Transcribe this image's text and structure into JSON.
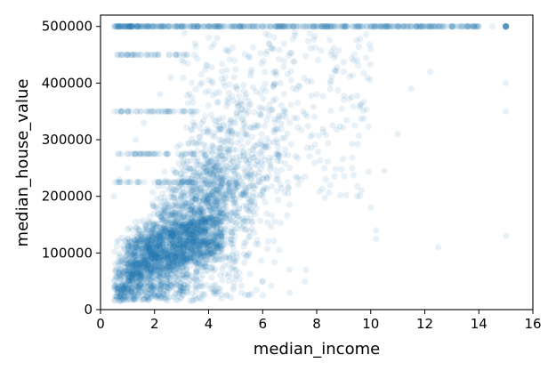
{
  "chart_data": {
    "type": "scatter",
    "xlabel": "median_income",
    "ylabel": "median_house_value",
    "xlim": [
      0,
      16
    ],
    "ylim": [
      0,
      520000
    ],
    "xticks": [
      0,
      2,
      4,
      6,
      8,
      10,
      12,
      14,
      16
    ],
    "yticks": [
      0,
      100000,
      200000,
      300000,
      400000,
      500000
    ],
    "xtick_labels": [
      "0",
      "2",
      "4",
      "6",
      "8",
      "10",
      "12",
      "14",
      "16"
    ],
    "ytick_labels": [
      "0",
      "100000",
      "200000",
      "300000",
      "400000",
      "500000"
    ],
    "grid": false,
    "marker_color": "#1f77b4",
    "marker_alpha": 0.1,
    "series": [
      {
        "values": [
          [
            0.5,
            500000
          ],
          [
            0.8,
            500000
          ],
          [
            1.2,
            500000
          ],
          [
            1.5,
            500000
          ],
          [
            2.0,
            500000
          ],
          [
            2.5,
            500000
          ],
          [
            3.0,
            500000
          ],
          [
            3.5,
            500000
          ],
          [
            4.0,
            500000
          ],
          [
            4.5,
            500000
          ],
          [
            5.0,
            500000
          ],
          [
            5.5,
            500000
          ],
          [
            6.0,
            500000
          ],
          [
            6.5,
            500000
          ],
          [
            7.0,
            500000
          ],
          [
            7.5,
            500000
          ],
          [
            8.0,
            500000
          ],
          [
            8.5,
            500000
          ],
          [
            9.0,
            500000
          ],
          [
            9.5,
            500000
          ],
          [
            10.0,
            500000
          ],
          [
            10.5,
            500000
          ],
          [
            11.0,
            500000
          ],
          [
            11.5,
            500000
          ],
          [
            12.0,
            500000
          ],
          [
            12.5,
            500000
          ],
          [
            13.0,
            500000
          ],
          [
            13.5,
            500000
          ],
          [
            14.0,
            500000
          ],
          [
            14.5,
            500000
          ],
          [
            15.0,
            500000
          ],
          [
            0.5,
            350000
          ],
          [
            1.0,
            350000
          ],
          [
            1.5,
            350000
          ],
          [
            2.0,
            350000
          ],
          [
            1.0,
            450000
          ],
          [
            1.5,
            450000
          ],
          [
            2.0,
            450000
          ],
          [
            1.0,
            275000
          ],
          [
            1.5,
            275000
          ],
          [
            2.0,
            275000
          ],
          [
            0.6,
            120000
          ],
          [
            0.8,
            90000
          ],
          [
            1.0,
            70000
          ],
          [
            1.2,
            60000
          ],
          [
            1.5,
            80000
          ],
          [
            1.8,
            65000
          ],
          [
            2.0,
            90000
          ],
          [
            2.2,
            110000
          ],
          [
            2.5,
            95000
          ],
          [
            2.8,
            130000
          ],
          [
            3.0,
            150000
          ],
          [
            3.2,
            120000
          ],
          [
            3.5,
            170000
          ],
          [
            3.8,
            160000
          ],
          [
            4.0,
            190000
          ],
          [
            4.2,
            200000
          ],
          [
            4.5,
            210000
          ],
          [
            4.8,
            220000
          ],
          [
            5.0,
            240000
          ],
          [
            5.5,
            260000
          ],
          [
            6.0,
            280000
          ],
          [
            6.5,
            300000
          ],
          [
            7.0,
            330000
          ],
          [
            7.5,
            350000
          ],
          [
            8.0,
            380000
          ],
          [
            8.5,
            400000
          ],
          [
            9.0,
            420000
          ],
          [
            9.5,
            440000
          ],
          [
            10.0,
            460000
          ],
          [
            2.0,
            150000
          ],
          [
            2.5,
            180000
          ],
          [
            3.0,
            200000
          ],
          [
            3.5,
            230000
          ],
          [
            4.0,
            260000
          ],
          [
            4.5,
            300000
          ],
          [
            5.0,
            330000
          ],
          [
            5.5,
            360000
          ],
          [
            6.0,
            390000
          ],
          [
            6.5,
            420000
          ],
          [
            3.0,
            80000
          ],
          [
            3.5,
            100000
          ],
          [
            4.0,
            120000
          ],
          [
            4.5,
            140000
          ],
          [
            5.0,
            170000
          ],
          [
            5.5,
            190000
          ],
          [
            6.0,
            210000
          ],
          [
            6.5,
            230000
          ],
          [
            7.0,
            250000
          ],
          [
            8.5,
            220000
          ],
          [
            9.5,
            200000
          ],
          [
            10.0,
            180000
          ],
          [
            10.2,
            140000
          ],
          [
            10.2,
            125000
          ],
          [
            11.0,
            310000
          ],
          [
            10.5,
            245000
          ],
          [
            11.5,
            390000
          ],
          [
            12.5,
            110000
          ],
          [
            12.2,
            420000
          ],
          [
            15.0,
            400000
          ],
          [
            15.0,
            350000
          ],
          [
            15.0,
            130000
          ],
          [
            7.6,
            70000
          ],
          [
            6.0,
            50000
          ],
          [
            0.5,
            200000
          ],
          [
            0.7,
            230000
          ],
          [
            1.0,
            250000
          ],
          [
            1.3,
            300000
          ],
          [
            1.6,
            330000
          ],
          [
            2.2,
            380000
          ],
          [
            2.6,
            410000
          ],
          [
            3.0,
            440000
          ],
          [
            3.5,
            470000
          ],
          [
            4.0,
            480000
          ],
          [
            0.6,
            40000
          ],
          [
            0.9,
            30000
          ],
          [
            1.2,
            20000
          ],
          [
            1.5,
            35000
          ],
          [
            1.8,
            45000
          ],
          [
            2.5,
            60000
          ],
          [
            2.8,
            55000
          ],
          [
            3.2,
            70000
          ],
          [
            5.5,
            100000
          ],
          [
            4.8,
            90000
          ]
        ]
      }
    ]
  }
}
